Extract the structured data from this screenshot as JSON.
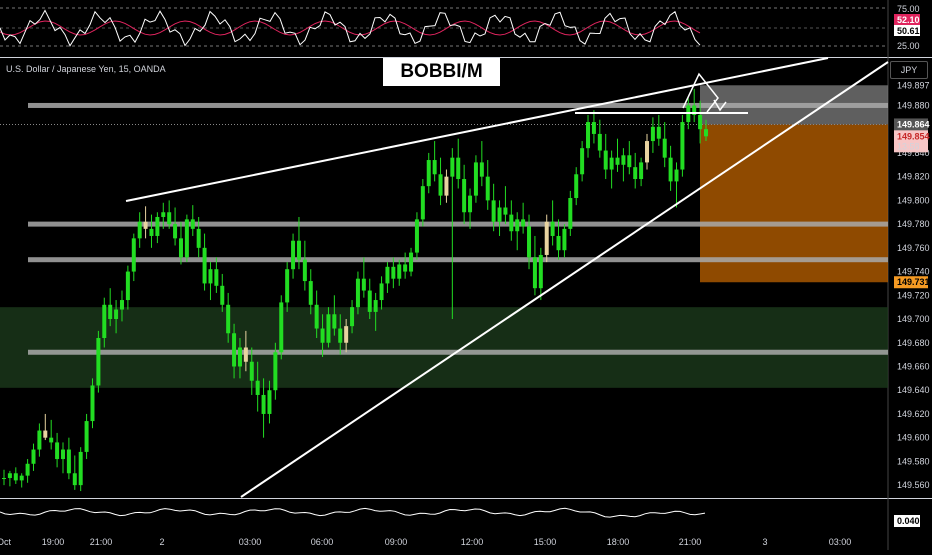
{
  "symbol_title": "U.S. Dollar / Japanese Yen, 15, OANDA",
  "banner_text": "BOBBI/M",
  "currency_label": "JPY",
  "osc_top": {
    "ticks": [
      "75.00",
      "25.00"
    ],
    "badge_a": "52.10",
    "badge_b": "50.61",
    "colors": {
      "line_a": "#ffffff",
      "line_b": "#e0245e"
    }
  },
  "osc_bottom": {
    "badge": "0.040"
  },
  "price_axis": {
    "ticks": [
      "149.897",
      "149.880",
      "149.864",
      "149.854",
      "13:58",
      "149.840",
      "149.820",
      "149.800",
      "149.780",
      "149.760",
      "149.740",
      "149.731",
      "149.720",
      "149.700",
      "149.680",
      "149.660",
      "149.640",
      "149.620",
      "149.600",
      "149.580",
      "149.560"
    ]
  },
  "time_axis": {
    "labels": [
      "Oct",
      "19:00",
      "21:00",
      "2",
      "03:00",
      "06:00",
      "09:00",
      "12:00",
      "15:00",
      "18:00",
      "21:00",
      "3",
      "03:00"
    ]
  },
  "chart_data": {
    "type": "candlestick",
    "title": "U.S. Dollar / Japanese Yen, 15, OANDA",
    "ylim": [
      149.55,
      149.92
    ],
    "current_price": 149.854,
    "countdown": "13:58",
    "levels": [
      149.88,
      149.864,
      149.78,
      149.75,
      149.672
    ],
    "zones": {
      "demand": [
        149.642,
        149.71
      ],
      "target": [
        149.731,
        149.864
      ],
      "stop": [
        149.864,
        149.897
      ]
    },
    "colors": {
      "up": "#22dd22",
      "down": "#22dd22",
      "doji": "#e8d3a0",
      "zone_demand": "#1b3a1b",
      "zone_target": "#b35c00",
      "zone_stop": "#777777"
    },
    "candles": [
      [
        149.566,
        149.573,
        149.56,
        149.566
      ],
      [
        149.566,
        149.572,
        149.559,
        149.57
      ],
      [
        149.57,
        149.575,
        149.561,
        149.564
      ],
      [
        149.564,
        149.57,
        149.558,
        149.568
      ],
      [
        149.568,
        149.582,
        149.562,
        149.578
      ],
      [
        149.578,
        149.595,
        149.572,
        149.59
      ],
      [
        149.59,
        149.612,
        149.584,
        149.606
      ],
      [
        149.606,
        149.62,
        149.598,
        149.6
      ],
      [
        149.6,
        149.615,
        149.59,
        149.596
      ],
      [
        149.596,
        149.604,
        149.575,
        149.582
      ],
      [
        149.582,
        149.596,
        149.57,
        149.59
      ],
      [
        149.59,
        149.6,
        149.565,
        149.57
      ],
      [
        149.57,
        149.585,
        149.556,
        149.56
      ],
      [
        149.56,
        149.592,
        149.555,
        149.588
      ],
      [
        149.588,
        149.62,
        149.582,
        149.614
      ],
      [
        149.614,
        149.65,
        149.608,
        149.644
      ],
      [
        149.644,
        149.69,
        149.638,
        149.684
      ],
      [
        149.684,
        149.718,
        149.676,
        149.712
      ],
      [
        149.712,
        149.726,
        149.694,
        149.7
      ],
      [
        149.7,
        149.716,
        149.688,
        149.708
      ],
      [
        149.708,
        149.724,
        149.698,
        149.716
      ],
      [
        149.716,
        149.745,
        149.708,
        149.74
      ],
      [
        149.74,
        149.772,
        149.732,
        149.768
      ],
      [
        149.768,
        149.79,
        149.76,
        149.782
      ],
      [
        149.782,
        149.795,
        149.768,
        149.776
      ],
      [
        149.776,
        149.788,
        149.76,
        149.77
      ],
      [
        149.77,
        149.79,
        149.764,
        149.786
      ],
      [
        149.786,
        149.798,
        149.776,
        149.79
      ],
      [
        149.79,
        149.8,
        149.776,
        149.78
      ],
      [
        149.78,
        149.794,
        149.762,
        149.768
      ],
      [
        149.768,
        149.782,
        149.746,
        149.752
      ],
      [
        149.752,
        149.788,
        149.748,
        149.784
      ],
      [
        149.784,
        149.796,
        149.77,
        149.776
      ],
      [
        149.776,
        149.786,
        149.752,
        149.76
      ],
      [
        149.76,
        149.772,
        149.724,
        149.73
      ],
      [
        149.73,
        149.748,
        149.716,
        149.742
      ],
      [
        149.742,
        149.752,
        149.722,
        149.728
      ],
      [
        149.728,
        149.738,
        149.706,
        149.712
      ],
      [
        149.712,
        149.722,
        149.68,
        149.688
      ],
      [
        149.688,
        149.696,
        149.65,
        149.66
      ],
      [
        149.66,
        149.684,
        149.65,
        149.676
      ],
      [
        149.676,
        149.69,
        149.656,
        149.664
      ],
      [
        149.664,
        149.676,
        149.636,
        149.648
      ],
      [
        149.648,
        149.664,
        149.622,
        149.636
      ],
      [
        149.636,
        149.65,
        149.6,
        149.62
      ],
      [
        149.62,
        149.648,
        149.612,
        149.64
      ],
      [
        149.64,
        149.68,
        149.632,
        149.672
      ],
      [
        149.672,
        149.72,
        149.666,
        149.714
      ],
      [
        149.714,
        149.748,
        149.706,
        149.742
      ],
      [
        149.742,
        149.772,
        149.734,
        149.766
      ],
      [
        149.766,
        149.786,
        149.742,
        149.75
      ],
      [
        149.75,
        149.766,
        149.724,
        149.732
      ],
      [
        149.732,
        149.742,
        149.704,
        149.712
      ],
      [
        149.712,
        149.724,
        149.684,
        149.692
      ],
      [
        149.692,
        149.704,
        149.668,
        149.68
      ],
      [
        149.68,
        149.71,
        149.676,
        149.704
      ],
      [
        149.704,
        149.72,
        149.686,
        149.692
      ],
      [
        149.692,
        149.704,
        149.67,
        149.68
      ],
      [
        149.68,
        149.7,
        149.672,
        149.694
      ],
      [
        149.694,
        149.716,
        149.688,
        149.71
      ],
      [
        149.71,
        149.74,
        149.704,
        149.734
      ],
      [
        149.734,
        149.752,
        149.718,
        149.724
      ],
      [
        149.724,
        149.734,
        149.7,
        149.706
      ],
      [
        149.706,
        149.722,
        149.69,
        149.716
      ],
      [
        149.716,
        149.736,
        149.708,
        149.73
      ],
      [
        149.73,
        149.748,
        149.722,
        149.744
      ],
      [
        149.744,
        149.752,
        149.726,
        149.734
      ],
      [
        149.734,
        149.75,
        149.728,
        149.746
      ],
      [
        149.746,
        149.756,
        149.734,
        149.74
      ],
      [
        149.74,
        149.76,
        149.736,
        149.756
      ],
      [
        149.756,
        149.79,
        149.75,
        149.784
      ],
      [
        149.784,
        149.818,
        149.778,
        149.812
      ],
      [
        149.812,
        149.84,
        149.806,
        149.834
      ],
      [
        149.834,
        149.85,
        149.816,
        149.822
      ],
      [
        149.822,
        149.836,
        149.796,
        149.804
      ],
      [
        149.804,
        149.826,
        149.798,
        149.82
      ],
      [
        149.82,
        149.844,
        149.7,
        149.836
      ],
      [
        149.836,
        149.852,
        149.81,
        149.818
      ],
      [
        149.818,
        149.83,
        149.78,
        149.79
      ],
      [
        149.79,
        149.81,
        149.776,
        149.804
      ],
      [
        149.804,
        149.838,
        149.798,
        149.832
      ],
      [
        149.832,
        149.85,
        149.812,
        149.82
      ],
      [
        149.82,
        149.834,
        149.792,
        149.8
      ],
      [
        149.8,
        149.814,
        149.774,
        149.782
      ],
      [
        149.782,
        149.8,
        149.77,
        149.794
      ],
      [
        149.794,
        149.812,
        149.78,
        149.788
      ],
      [
        149.788,
        149.8,
        149.766,
        149.774
      ],
      [
        149.774,
        149.79,
        149.758,
        149.784
      ],
      [
        149.784,
        149.798,
        149.772,
        149.778
      ],
      [
        149.778,
        149.788,
        149.742,
        149.752
      ],
      [
        149.752,
        149.77,
        149.72,
        149.726
      ],
      [
        149.726,
        149.76,
        149.716,
        149.754
      ],
      [
        149.754,
        149.788,
        149.748,
        149.782
      ],
      [
        149.782,
        149.8,
        149.762,
        149.77
      ],
      [
        149.77,
        149.784,
        149.75,
        149.758
      ],
      [
        149.758,
        149.78,
        149.752,
        149.776
      ],
      [
        149.776,
        149.808,
        149.77,
        149.802
      ],
      [
        149.802,
        149.828,
        149.796,
        149.822
      ],
      [
        149.822,
        149.85,
        149.816,
        149.844
      ],
      [
        149.844,
        149.872,
        149.836,
        149.866
      ],
      [
        149.866,
        149.876,
        149.848,
        149.856
      ],
      [
        149.856,
        149.868,
        149.836,
        149.842
      ],
      [
        149.842,
        149.856,
        149.818,
        149.826
      ],
      [
        149.826,
        149.842,
        149.81,
        149.836
      ],
      [
        149.836,
        149.852,
        149.824,
        149.83
      ],
      [
        149.83,
        149.844,
        149.816,
        149.838
      ],
      [
        149.838,
        149.85,
        149.822,
        149.828
      ],
      [
        149.828,
        149.84,
        149.81,
        149.818
      ],
      [
        149.818,
        149.836,
        149.812,
        149.832
      ],
      [
        149.832,
        149.856,
        149.826,
        149.85
      ],
      [
        149.85,
        149.87,
        149.84,
        149.862
      ],
      [
        149.862,
        149.872,
        149.846,
        149.852
      ],
      [
        149.852,
        149.866,
        149.828,
        149.836
      ],
      [
        149.836,
        149.846,
        149.808,
        149.816
      ],
      [
        149.816,
        149.832,
        149.794,
        149.826
      ],
      [
        149.826,
        149.872,
        149.82,
        149.866
      ],
      [
        149.866,
        149.886,
        149.86,
        149.88
      ],
      [
        149.88,
        149.894,
        149.866,
        149.872
      ],
      [
        149.872,
        149.884,
        149.848,
        149.86
      ],
      [
        149.86,
        149.868,
        149.85,
        149.854
      ]
    ]
  }
}
